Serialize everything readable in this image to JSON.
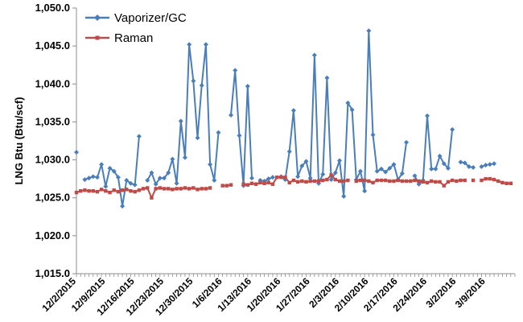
{
  "chart_data": {
    "type": "line",
    "title": "",
    "xlabel": "",
    "ylabel": "LNG Btu (Btu/scf)",
    "ylim": [
      1015.0,
      1050.0
    ],
    "yticks": [
      "1,015.0",
      "1,020.0",
      "1,025.0",
      "1,030.0",
      "1,035.0",
      "1,040.0",
      "1,045.0",
      "1,050.0"
    ],
    "ytick_values": [
      1015,
      1020,
      1025,
      1030,
      1035,
      1040,
      1045,
      1050
    ],
    "xlim": [
      "2015-12-02",
      "2016-03-16"
    ],
    "xticks": [
      "12/2/2015",
      "12/9/2015",
      "12/16/2015",
      "12/23/2015",
      "12/30/2015",
      "1/6/2016",
      "1/13/2016",
      "1/20/2016",
      "1/27/2016",
      "2/3/2016",
      "2/10/2016",
      "2/17/2016",
      "2/24/2016",
      "3/2/2016",
      "3/9/2016"
    ],
    "grid": false,
    "legend_position": "top-left",
    "series": [
      {
        "name": "Vaporizer/GC",
        "color": "#4a7ebb",
        "marker": "diamond",
        "x": [
          "2015-12-02",
          "2015-12-04",
          "2015-12-05",
          "2015-12-06",
          "2015-12-07",
          "2015-12-08",
          "2015-12-09",
          "2015-12-10",
          "2015-12-11",
          "2015-12-12",
          "2015-12-13",
          "2015-12-14",
          "2015-12-15",
          "2015-12-16",
          "2015-12-17",
          "2015-12-19",
          "2015-12-20",
          "2015-12-21",
          "2015-12-22",
          "2015-12-23",
          "2015-12-24",
          "2015-12-25",
          "2015-12-26",
          "2015-12-27",
          "2015-12-28",
          "2015-12-29",
          "2015-12-30",
          "2015-12-31",
          "2016-01-01",
          "2016-01-02",
          "2016-01-03",
          "2016-01-04",
          "2016-01-05",
          "2016-01-08",
          "2016-01-09",
          "2016-01-10",
          "2016-01-11",
          "2016-01-12",
          "2016-01-13",
          "2016-01-15",
          "2016-01-16",
          "2016-01-17",
          "2016-01-18",
          "2016-01-20",
          "2016-01-21",
          "2016-01-22",
          "2016-01-23",
          "2016-01-24",
          "2016-01-25",
          "2016-01-26",
          "2016-01-27",
          "2016-01-28",
          "2016-01-29",
          "2016-01-30",
          "2016-01-31",
          "2016-02-01",
          "2016-02-02",
          "2016-02-03",
          "2016-02-04",
          "2016-02-05",
          "2016-02-06",
          "2016-02-07",
          "2016-02-08",
          "2016-02-09",
          "2016-02-10",
          "2016-02-11",
          "2016-02-12",
          "2016-02-13",
          "2016-02-14",
          "2016-02-15",
          "2016-02-16",
          "2016-02-17",
          "2016-02-18",
          "2016-02-19",
          "2016-02-21",
          "2016-02-22",
          "2016-02-23",
          "2016-02-24",
          "2016-02-25",
          "2016-02-26",
          "2016-02-27",
          "2016-02-28",
          "2016-02-29",
          "2016-03-01",
          "2016-03-03",
          "2016-03-04",
          "2016-03-05",
          "2016-03-06",
          "2016-03-08",
          "2016-03-09",
          "2016-03-10",
          "2016-03-11"
        ],
        "y": [
          1031.0,
          1027.4,
          1027.6,
          1027.8,
          1027.7,
          1029.4,
          1026.5,
          1028.9,
          1028.5,
          1027.7,
          1023.9,
          1027.3,
          1026.9,
          1026.7,
          1033.1,
          1027.3,
          1028.3,
          1026.8,
          1027.6,
          1027.6,
          1028.3,
          1030.1,
          1026.9,
          1035.1,
          1030.3,
          1045.2,
          1040.4,
          1032.9,
          1039.8,
          1045.2,
          1029.4,
          1027.3,
          1033.6,
          1035.9,
          1041.8,
          1033.2,
          1026.6,
          1039.7,
          1027.6,
          1027.3,
          1027.2,
          1027.5,
          1027.7,
          1027.8,
          1027.4,
          1031.1,
          1036.5,
          1027.8,
          1029.2,
          1029.8,
          1027.6,
          1043.8,
          1026.9,
          1028.1,
          1040.8,
          1027.4,
          1028.3,
          1029.9,
          1025.2,
          1037.5,
          1036.6,
          1027.4,
          1028.5,
          1025.9,
          1047.0,
          1033.3,
          1028.5,
          1028.8,
          1028.4,
          1028.9,
          1029.4,
          1027.4,
          1028.2,
          1032.3,
          1027.9,
          1026.8,
          1027.3,
          1035.8,
          1028.8,
          1028.8,
          1030.5,
          1029.5,
          1028.9,
          1034.0,
          1029.7,
          1029.6,
          1029.1,
          1029.0,
          1029.1,
          1029.3,
          1029.4,
          1029.5
        ]
      },
      {
        "name": "Raman",
        "color": "#be4b48",
        "marker": "square",
        "x": [
          "2015-12-02",
          "2015-12-03",
          "2015-12-04",
          "2015-12-05",
          "2015-12-06",
          "2015-12-07",
          "2015-12-08",
          "2015-12-09",
          "2015-12-10",
          "2015-12-11",
          "2015-12-12",
          "2015-12-13",
          "2015-12-14",
          "2015-12-15",
          "2015-12-16",
          "2015-12-17",
          "2015-12-18",
          "2015-12-19",
          "2015-12-20",
          "2015-12-21",
          "2015-12-22",
          "2015-12-23",
          "2015-12-24",
          "2015-12-25",
          "2015-12-26",
          "2015-12-27",
          "2015-12-28",
          "2015-12-29",
          "2015-12-30",
          "2015-12-31",
          "2016-01-01",
          "2016-01-02",
          "2016-01-03",
          "2016-01-06",
          "2016-01-07",
          "2016-01-08",
          "2016-01-11",
          "2016-01-12",
          "2016-01-13",
          "2016-01-14",
          "2016-01-15",
          "2016-01-16",
          "2016-01-17",
          "2016-01-18",
          "2016-01-19",
          "2016-01-20",
          "2016-01-21",
          "2016-01-22",
          "2016-01-23",
          "2016-01-24",
          "2016-01-25",
          "2016-01-26",
          "2016-01-27",
          "2016-01-28",
          "2016-01-29",
          "2016-01-30",
          "2016-01-31",
          "2016-02-01",
          "2016-02-02",
          "2016-02-03",
          "2016-02-04",
          "2016-02-05",
          "2016-02-07",
          "2016-02-08",
          "2016-02-09",
          "2016-02-10",
          "2016-02-11",
          "2016-02-12",
          "2016-02-13",
          "2016-02-14",
          "2016-02-15",
          "2016-02-16",
          "2016-02-17",
          "2016-02-18",
          "2016-02-19",
          "2016-02-20",
          "2016-02-21",
          "2016-02-22",
          "2016-02-23",
          "2016-02-24",
          "2016-02-25",
          "2016-02-26",
          "2016-02-27",
          "2016-02-28",
          "2016-02-29",
          "2016-03-01",
          "2016-03-02",
          "2016-03-03",
          "2016-03-04",
          "2016-03-06",
          "2016-03-08",
          "2016-03-09",
          "2016-03-10",
          "2016-03-11",
          "2016-03-12",
          "2016-03-13",
          "2016-03-14",
          "2016-03-15"
        ],
        "y": [
          1025.7,
          1025.9,
          1026.0,
          1025.9,
          1025.9,
          1025.8,
          1026.1,
          1025.9,
          1025.7,
          1026.0,
          1025.8,
          1026.0,
          1026.1,
          1025.9,
          1025.8,
          1026.0,
          1026.2,
          1026.3,
          1025.0,
          1026.2,
          1026.3,
          1026.2,
          1026.2,
          1026.1,
          1026.2,
          1026.2,
          1026.3,
          1026.2,
          1026.3,
          1026.1,
          1026.2,
          1026.2,
          1026.3,
          1026.6,
          1026.6,
          1026.7,
          1026.8,
          1026.7,
          1026.9,
          1026.8,
          1027.0,
          1026.9,
          1027.0,
          1026.8,
          1027.7,
          1027.7,
          1027.7,
          1027.0,
          1027.3,
          1027.1,
          1027.2,
          1027.1,
          1027.2,
          1027.2,
          1027.2,
          1027.3,
          1027.4,
          1028.0,
          1027.4,
          1027.2,
          1027.2,
          1027.3,
          1027.2,
          1027.3,
          1027.3,
          1027.2,
          1027.0,
          1027.3,
          1027.3,
          1027.3,
          1027.2,
          1027.2,
          1027.3,
          1027.2,
          1027.2,
          1027.2,
          1027.3,
          1027.2,
          1027.1,
          1027.0,
          1027.2,
          1027.1,
          1027.1,
          1026.6,
          1027.1,
          1027.3,
          1027.2,
          1027.3,
          1027.3,
          1027.3,
          1027.3,
          1027.5,
          1027.5,
          1027.4,
          1027.2,
          1027.0,
          1026.9,
          1026.9
        ]
      }
    ]
  }
}
